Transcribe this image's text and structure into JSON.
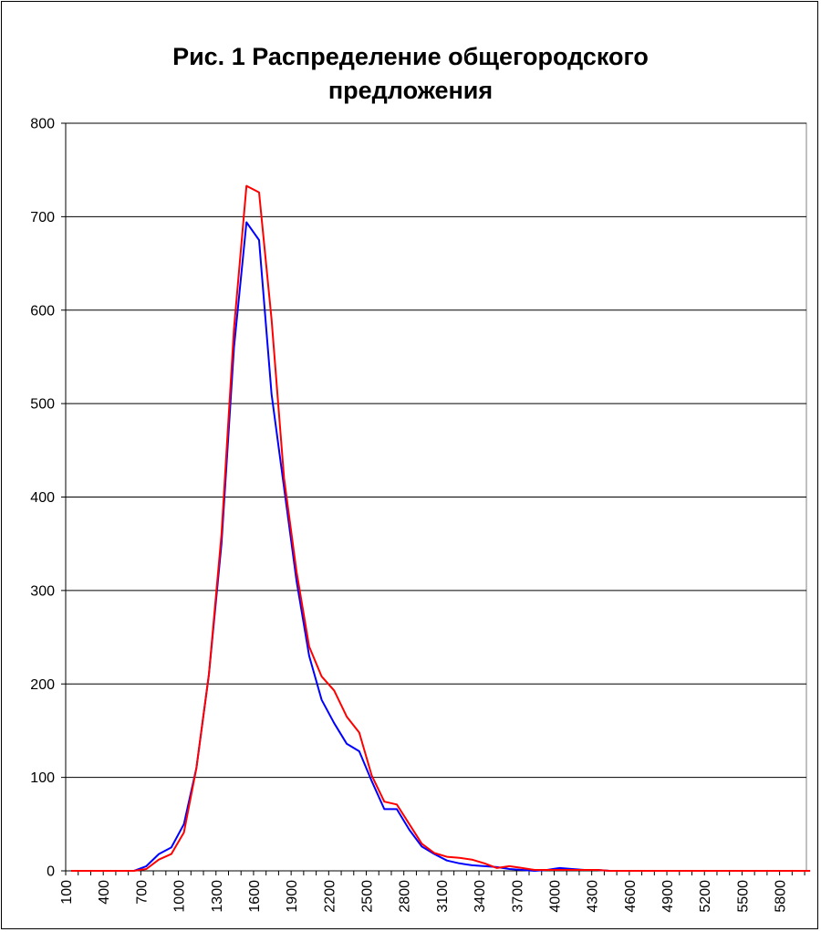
{
  "chart_data": {
    "type": "line",
    "title_line1": "Рис. 1 Распределение общегородского",
    "title_line2": "предложения",
    "xlabel": "",
    "ylabel": "",
    "ylim": [
      0,
      800
    ],
    "y_ticks": [
      0,
      100,
      200,
      300,
      400,
      500,
      600,
      700,
      800
    ],
    "x_tick_labels": [
      "100",
      "400",
      "700",
      "1000",
      "1300",
      "1600",
      "1900",
      "2200",
      "2500",
      "2800",
      "3100",
      "3400",
      "3700",
      "4000",
      "4300",
      "4600",
      "4900",
      "5200",
      "5500",
      "5800"
    ],
    "grid": true,
    "legend": "none",
    "x": [
      100,
      200,
      300,
      400,
      500,
      600,
      700,
      800,
      900,
      1000,
      1100,
      1200,
      1300,
      1400,
      1500,
      1600,
      1700,
      1800,
      1900,
      2000,
      2100,
      2200,
      2300,
      2400,
      2500,
      2600,
      2700,
      2800,
      2900,
      3000,
      3100,
      3200,
      3300,
      3400,
      3500,
      3600,
      3700,
      3800,
      3900,
      4000,
      4100,
      4200,
      4300,
      4400,
      4500,
      4600,
      4700,
      4800,
      4900,
      5000,
      5100,
      5200,
      5300,
      5400,
      5500,
      5600,
      5700,
      5800,
      5900,
      6000
    ],
    "series": [
      {
        "color": "#0000ff",
        "values": [
          0,
          0,
          0,
          0,
          0,
          0,
          5,
          18,
          25,
          50,
          110,
          210,
          350,
          560,
          694,
          675,
          510,
          410,
          310,
          230,
          183,
          158,
          136,
          128,
          96,
          66,
          66,
          44,
          26,
          18,
          11,
          8,
          6,
          5,
          4,
          2,
          1,
          0,
          1,
          3,
          2,
          1,
          1,
          0,
          0,
          0,
          0,
          0,
          0,
          0,
          0,
          0,
          0,
          0,
          0,
          0,
          0,
          0,
          0,
          0
        ]
      },
      {
        "color": "#ff0000",
        "values": [
          0,
          0,
          0,
          0,
          0,
          0,
          2,
          12,
          18,
          41,
          110,
          210,
          360,
          580,
          733,
          726,
          590,
          420,
          320,
          240,
          208,
          193,
          165,
          148,
          102,
          74,
          71,
          50,
          29,
          19,
          15,
          14,
          12,
          8,
          3,
          5,
          3,
          1,
          1,
          1,
          1,
          1,
          1,
          0,
          0,
          0,
          0,
          0,
          0,
          0,
          0,
          0,
          0,
          0,
          0,
          0,
          0,
          0,
          0,
          0
        ]
      }
    ]
  }
}
